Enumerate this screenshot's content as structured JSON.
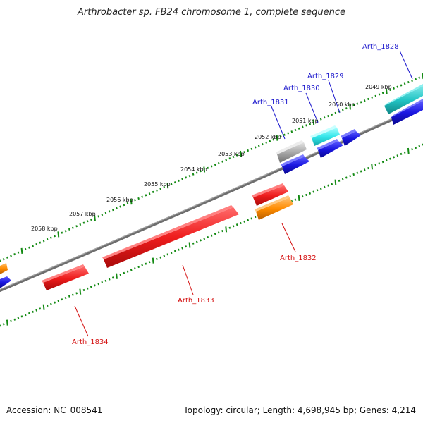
{
  "title": "Arthrobacter sp. FB24 chromosome 1, complete sequence",
  "footer": {
    "accession": "Accession: NC_008541",
    "summary": "Topology: circular; Length: 4,698,945 bp; Genes: 4,214"
  },
  "scale_labels": [
    {
      "text": "2049 kbp"
    },
    {
      "text": "2050 kbp"
    },
    {
      "text": "2051 kbp"
    },
    {
      "text": "2052 kbp"
    },
    {
      "text": "2053 kbp"
    },
    {
      "text": "2054 kbp"
    },
    {
      "text": "2055 kbp"
    },
    {
      "text": "2056 kbp"
    },
    {
      "text": "2057 kbp"
    },
    {
      "text": "2058 kbp"
    }
  ],
  "genes_forward": [
    {
      "name": "Arth_1828",
      "color": "#1a16e0",
      "strand": "+"
    },
    {
      "name": "Arth_1829",
      "color": "#1a16e0",
      "strand": "+"
    },
    {
      "name": "Arth_1830",
      "color": "#1a16e0",
      "strand": "+"
    },
    {
      "name": "Arth_1831",
      "color": "#1a16e0",
      "strand": "+"
    }
  ],
  "genes_reverse": [
    {
      "name": "Arth_1832",
      "color": "#e01414",
      "strand": "-"
    },
    {
      "name": "Arth_1833",
      "color": "#e01414",
      "strand": "-"
    },
    {
      "name": "Arth_1834",
      "color": "#e01414",
      "strand": "-"
    }
  ],
  "colors": {
    "forward_label": "#1a16cc",
    "reverse_label": "#d41010",
    "cds_forward": "#1a16e0",
    "cds_reverse": "#e01414",
    "gene_cyan": "#33e6ea",
    "gene_teal": "#22c4c4",
    "gene_orange": "#ff8c00",
    "gene_grey": "#a8a8a8",
    "backbone": "#6e6e6e",
    "ticks": "#138a13"
  }
}
